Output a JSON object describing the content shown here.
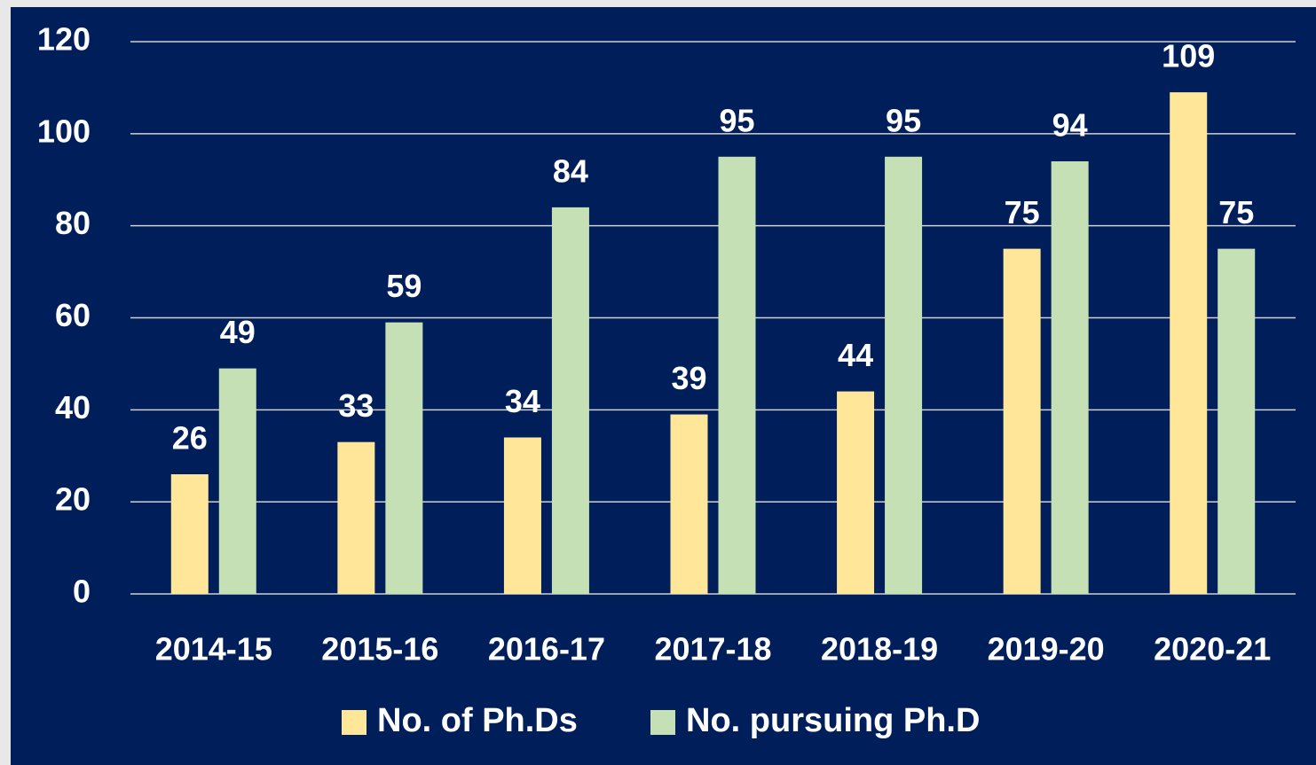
{
  "chart_data": {
    "type": "bar",
    "categories": [
      "2014-15",
      "2015-16",
      "2016-17",
      "2017-18",
      "2018-19",
      "2019-20",
      "2020-21"
    ],
    "series": [
      {
        "name": "No. of Ph.Ds",
        "color": "#ffe699",
        "values": [
          26,
          33,
          34,
          39,
          44,
          75,
          109
        ]
      },
      {
        "name": "No. pursuing Ph.D",
        "color": "#c5e0b4",
        "values": [
          49,
          59,
          84,
          95,
          95,
          94,
          75
        ]
      }
    ],
    "ylim": [
      0,
      120
    ],
    "yticks": [
      0,
      20,
      40,
      60,
      80,
      100,
      120
    ],
    "grid": true,
    "legend": "bottom"
  }
}
